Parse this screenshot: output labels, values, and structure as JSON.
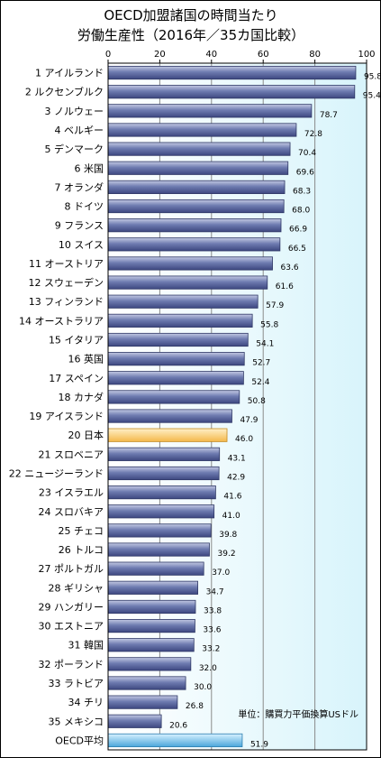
{
  "chart_data": {
    "type": "bar",
    "orientation": "horizontal",
    "title": [
      "OECD加盟諸国の時間当たり",
      "労働生産性（2016年／35カ国比較）"
    ],
    "unit_note": "単位：購買力平価換算USドル",
    "xlim": [
      0,
      100
    ],
    "xticks": [
      "0",
      "20",
      "40",
      "60",
      "80",
      "100"
    ],
    "grid": true,
    "categories": [
      "1 アイルランド",
      "2 ルクセンブルク",
      "3 ノルウェー",
      "4 ベルギー",
      "5 デンマーク",
      "6 米国",
      "7 オランダ",
      "8 ドイツ",
      "9 フランス",
      "10 スイス",
      "11 オーストリア",
      "12 スウェーデン",
      "13 フィンランド",
      "14 オーストラリア",
      "15 イタリア",
      "16 英国",
      "17 スペイン",
      "18 カナダ",
      "19 アイスランド",
      "20 日本",
      "21 スロベニア",
      "22 ニュージーランド",
      "23 イスラエル",
      "24 スロバキア",
      "25 チェコ",
      "26 トルコ",
      "27 ポルトガル",
      "28 ギリシャ",
      "29 ハンガリー",
      "30 エストニア",
      "31 韓国",
      "32 ポーランド",
      "33 ラトビア",
      "34 チリ",
      "35 メキシコ",
      "OECD平均"
    ],
    "values": [
      95.8,
      95.4,
      78.7,
      72.8,
      70.4,
      69.6,
      68.3,
      68.0,
      66.9,
      66.5,
      63.6,
      61.6,
      57.9,
      55.8,
      54.1,
      52.7,
      52.4,
      50.8,
      47.9,
      46.0,
      43.1,
      42.9,
      41.6,
      41.0,
      39.8,
      39.2,
      37.0,
      34.7,
      33.8,
      33.6,
      33.2,
      32.0,
      30.0,
      26.8,
      20.6,
      51.9
    ],
    "value_labels": [
      "95.8",
      "95.4",
      "78.7",
      "72.8",
      "70.4",
      "69.6",
      "68.3",
      "68.0",
      "66.9",
      "66.5",
      "63.6",
      "61.6",
      "57.9",
      "55.8",
      "54.1",
      "52.7",
      "52.4",
      "50.8",
      "47.9",
      "46.0",
      "43.1",
      "42.9",
      "41.6",
      "41.0",
      "39.8",
      "39.2",
      "37.0",
      "34.7",
      "33.8",
      "33.6",
      "33.2",
      "32.0",
      "30.0",
      "26.8",
      "20.6",
      "51.9"
    ],
    "highlight": {
      "日本": "#ffd37a",
      "OECD平均": "#7fc8ee"
    },
    "colors": {
      "bar": "#5d6a9e",
      "bar_light": "#c3c9e3",
      "background": "#e6f8fd",
      "grid": "#8a8a8a",
      "border": "#000000"
    }
  }
}
